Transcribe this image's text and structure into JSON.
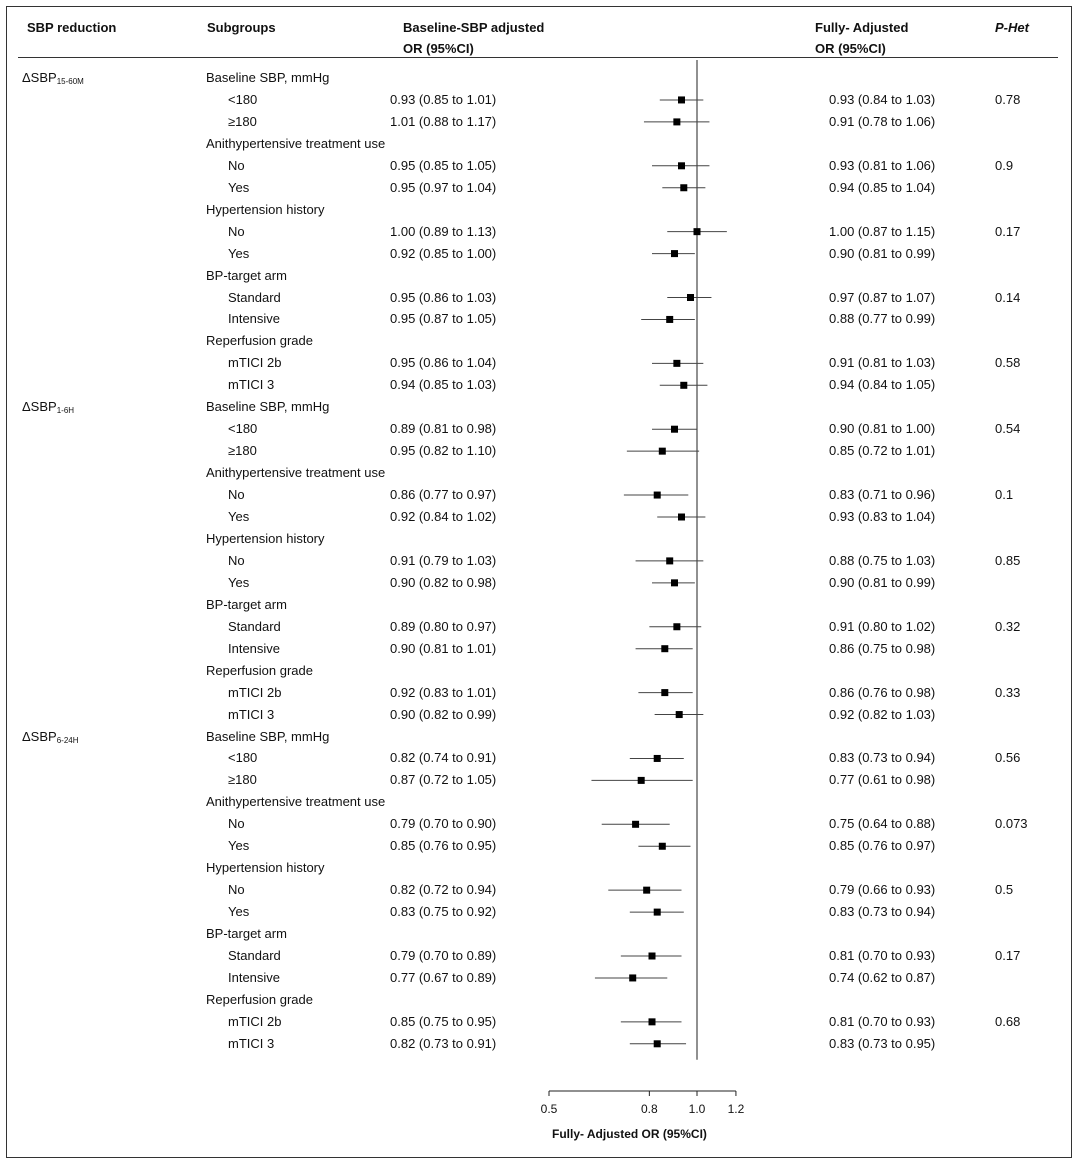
{
  "headers": {
    "sbp_reduction": "SBP reduction",
    "subgroups": "Subgroups",
    "baseline_or_line1": "Baseline-SBP adjusted",
    "baseline_or_line2": "OR (95%CI)",
    "fully_or_line1": "Fully- Adjusted",
    "fully_or_line2": "OR (95%CI)",
    "p_het": "P-Het"
  },
  "sections": [
    {
      "label": "ΔSBP",
      "label_sub": "15-60M",
      "groups": [
        {
          "title": "Baseline SBP, mmHg",
          "p_het": "0.78",
          "rows": [
            {
              "label": "<180",
              "baseline": "0.93 (0.85 to 1.01)",
              "fully": "0.93 (0.84 to 1.03)"
            },
            {
              "label": "≥180",
              "baseline": "1.01 (0.88 to 1.17)",
              "fully": "0.91 (0.78 to 1.06)"
            }
          ]
        },
        {
          "title": "Anithypertensive treatment use",
          "p_het": "0.9",
          "rows": [
            {
              "label": "No",
              "baseline": "0.95 (0.85 to 1.05)",
              "fully": "0.93 (0.81 to 1.06)"
            },
            {
              "label": "Yes",
              "baseline": "0.95 (0.97 to 1.04)",
              "fully": "0.94 (0.85 to 1.04)"
            }
          ]
        },
        {
          "title": "Hypertension history",
          "p_het": "0.17",
          "rows": [
            {
              "label": "No",
              "baseline": "1.00 (0.89 to 1.13)",
              "fully": "1.00 (0.87 to 1.15)"
            },
            {
              "label": "Yes",
              "baseline": "0.92 (0.85 to 1.00)",
              "fully": "0.90 (0.81 to 0.99)"
            }
          ]
        },
        {
          "title": "BP-target arm",
          "p_het": "0.14",
          "rows": [
            {
              "label": "Standard",
              "baseline": "0.95 (0.86 to 1.03)",
              "fully": "0.97 (0.87 to 1.07)"
            },
            {
              "label": "Intensive",
              "baseline": "0.95 (0.87 to 1.05)",
              "fully": "0.88 (0.77 to 0.99)"
            }
          ]
        },
        {
          "title": "Reperfusion grade",
          "p_het": "0.58",
          "rows": [
            {
              "label": "mTICI 2b",
              "baseline": "0.95 (0.86 to 1.04)",
              "fully": "0.91 (0.81 to 1.03)"
            },
            {
              "label": "mTICI 3",
              "baseline": "0.94 (0.85 to 1.03)",
              "fully": "0.94 (0.84 to 1.05)"
            }
          ]
        }
      ]
    },
    {
      "label": "ΔSBP",
      "label_sub": "1-6H",
      "groups": [
        {
          "title": "Baseline SBP, mmHg",
          "p_het": "0.54",
          "rows": [
            {
              "label": "<180",
              "baseline": "0.89 (0.81 to 0.98)",
              "fully": "0.90 (0.81 to 1.00)"
            },
            {
              "label": "≥180",
              "baseline": "0.95 (0.82 to 1.10)",
              "fully": "0.85 (0.72 to 1.01)"
            }
          ]
        },
        {
          "title": "Anithypertensive treatment use",
          "p_het": "0.1",
          "rows": [
            {
              "label": "No",
              "baseline": "0.86 (0.77 to 0.97)",
              "fully": "0.83 (0.71 to 0.96)"
            },
            {
              "label": "Yes",
              "baseline": "0.92 (0.84 to 1.02)",
              "fully": "0.93 (0.83 to 1.04)"
            }
          ]
        },
        {
          "title": "Hypertension history",
          "p_het": "0.85",
          "rows": [
            {
              "label": "No",
              "baseline": "0.91 (0.79 to 1.03)",
              "fully": "0.88 (0.75 to 1.03)"
            },
            {
              "label": "Yes",
              "baseline": "0.90 (0.82 to 0.98)",
              "fully": "0.90 (0.81 to 0.99)"
            }
          ]
        },
        {
          "title": "BP-target arm",
          "p_het": "0.32",
          "rows": [
            {
              "label": "Standard",
              "baseline": "0.89 (0.80 to 0.97)",
              "fully": "0.91 (0.80 to 1.02)"
            },
            {
              "label": "Intensive",
              "baseline": "0.90 (0.81 to 1.01)",
              "fully": "0.86 (0.75 to 0.98)"
            }
          ]
        },
        {
          "title": "Reperfusion grade",
          "p_het": "0.33",
          "rows": [
            {
              "label": "mTICI 2b",
              "baseline": "0.92 (0.83 to 1.01)",
              "fully": "0.86 (0.76 to 0.98)"
            },
            {
              "label": "mTICI 3",
              "baseline": "0.90 (0.82 to 0.99)",
              "fully": "0.92 (0.82 to 1.03)"
            }
          ]
        }
      ]
    },
    {
      "label": "ΔSBP",
      "label_sub": "6-24H",
      "groups": [
        {
          "title": "Baseline SBP, mmHg",
          "p_het": "0.56",
          "rows": [
            {
              "label": "<180",
              "baseline": "0.82 (0.74 to 0.91)",
              "fully": "0.83 (0.73 to 0.94)"
            },
            {
              "label": "≥180",
              "baseline": "0.87 (0.72 to 1.05)",
              "fully": "0.77 (0.61 to 0.98)"
            }
          ]
        },
        {
          "title": "Anithypertensive treatment use",
          "p_het": "0.073",
          "rows": [
            {
              "label": "No",
              "baseline": "0.79 (0.70 to 0.90)",
              "fully": "0.75 (0.64 to 0.88)"
            },
            {
              "label": "Yes",
              "baseline": "0.85 (0.76 to 0.95)",
              "fully": "0.85 (0.76 to 0.97)"
            }
          ]
        },
        {
          "title": "Hypertension history",
          "p_het": "0.5",
          "rows": [
            {
              "label": "No",
              "baseline": "0.82 (0.72 to 0.94)",
              "fully": "0.79 (0.66 to 0.93)"
            },
            {
              "label": "Yes",
              "baseline": "0.83 (0.75 to 0.92)",
              "fully": "0.83 (0.73 to 0.94)"
            }
          ]
        },
        {
          "title": "BP-target arm",
          "p_het": "0.17",
          "rows": [
            {
              "label": "Standard",
              "baseline": "0.79 (0.70 to 0.89)",
              "fully": "0.81 (0.70 to 0.93)"
            },
            {
              "label": "Intensive",
              "baseline": "0.77 (0.67 to 0.89)",
              "fully": "0.74 (0.62 to 0.87)"
            }
          ]
        },
        {
          "title": "Reperfusion grade",
          "p_het": "0.68",
          "rows": [
            {
              "label": "mTICI 2b",
              "baseline": "0.85 (0.75 to 0.95)",
              "fully": "0.81 (0.70 to 0.93)"
            },
            {
              "label": "mTICI 3",
              "baseline": "0.82 (0.73 to 0.91)",
              "fully": "0.83 (0.73 to 0.95)"
            }
          ]
        }
      ]
    }
  ],
  "chart_data": {
    "type": "forest",
    "scale": "log",
    "x_ticks": [
      0.5,
      0.8,
      1.0,
      1.2
    ],
    "x_tick_labels": [
      "0.5",
      "0.8",
      "1.0",
      "1.2"
    ],
    "xlim": [
      0.5,
      1.2
    ],
    "reference_line": 1.0,
    "xlabel": "Fully- Adjusted OR (95%CI)",
    "series": [
      {
        "or": 0.93,
        "lo": 0.84,
        "hi": 1.03
      },
      {
        "or": 0.91,
        "lo": 0.78,
        "hi": 1.06
      },
      {
        "or": 0.93,
        "lo": 0.81,
        "hi": 1.06
      },
      {
        "or": 0.94,
        "lo": 0.85,
        "hi": 1.04
      },
      {
        "or": 1.0,
        "lo": 0.87,
        "hi": 1.15
      },
      {
        "or": 0.9,
        "lo": 0.81,
        "hi": 0.99
      },
      {
        "or": 0.97,
        "lo": 0.87,
        "hi": 1.07
      },
      {
        "or": 0.88,
        "lo": 0.77,
        "hi": 0.99
      },
      {
        "or": 0.91,
        "lo": 0.81,
        "hi": 1.03
      },
      {
        "or": 0.94,
        "lo": 0.84,
        "hi": 1.05
      },
      {
        "or": 0.9,
        "lo": 0.81,
        "hi": 1.0
      },
      {
        "or": 0.85,
        "lo": 0.72,
        "hi": 1.01
      },
      {
        "or": 0.83,
        "lo": 0.71,
        "hi": 0.96
      },
      {
        "or": 0.93,
        "lo": 0.83,
        "hi": 1.04
      },
      {
        "or": 0.88,
        "lo": 0.75,
        "hi": 1.03
      },
      {
        "or": 0.9,
        "lo": 0.81,
        "hi": 0.99
      },
      {
        "or": 0.91,
        "lo": 0.8,
        "hi": 1.02
      },
      {
        "or": 0.86,
        "lo": 0.75,
        "hi": 0.98
      },
      {
        "or": 0.86,
        "lo": 0.76,
        "hi": 0.98
      },
      {
        "or": 0.92,
        "lo": 0.82,
        "hi": 1.03
      },
      {
        "or": 0.83,
        "lo": 0.73,
        "hi": 0.94
      },
      {
        "or": 0.77,
        "lo": 0.61,
        "hi": 0.98
      },
      {
        "or": 0.75,
        "lo": 0.64,
        "hi": 0.88
      },
      {
        "or": 0.85,
        "lo": 0.76,
        "hi": 0.97
      },
      {
        "or": 0.79,
        "lo": 0.66,
        "hi": 0.93
      },
      {
        "or": 0.83,
        "lo": 0.73,
        "hi": 0.94
      },
      {
        "or": 0.81,
        "lo": 0.7,
        "hi": 0.93
      },
      {
        "or": 0.74,
        "lo": 0.62,
        "hi": 0.87
      },
      {
        "or": 0.81,
        "lo": 0.7,
        "hi": 0.93
      },
      {
        "or": 0.83,
        "lo": 0.73,
        "hi": 0.95
      }
    ]
  }
}
